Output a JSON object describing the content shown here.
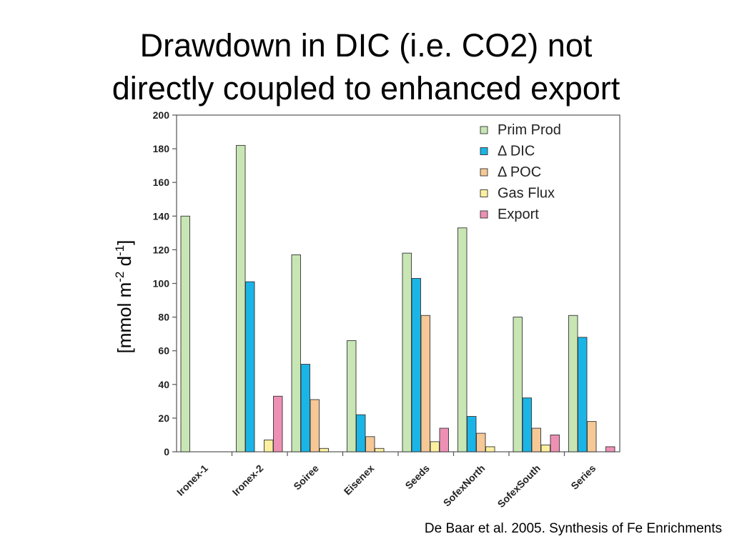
{
  "slide": {
    "title_line1": "Drawdown in DIC (i.e. CO2) not",
    "title_line2": "directly coupled to enhanced export",
    "citation": "De Baar et al. 2005.  Synthesis of Fe Enrichments"
  },
  "chart_data": {
    "type": "bar",
    "title": "",
    "xlabel": "",
    "ylabel": "[mmol m-2 d-1]",
    "ylabel_parts": {
      "pre": "[mmol m",
      "sup1": "-2",
      "mid": " d",
      "sup2": "-1",
      "post": "]"
    },
    "ylim": [
      0,
      200
    ],
    "yticks": [
      0,
      20,
      40,
      60,
      80,
      100,
      120,
      140,
      160,
      180,
      200
    ],
    "grid": false,
    "legend_position": "top-right",
    "categories": [
      "Ironex-1",
      "Ironex-2",
      "Soiree",
      "Eisenex",
      "Seeds",
      "SofexNorth",
      "SofexSouth",
      "Series"
    ],
    "series": [
      {
        "name": "Prim Prod",
        "color": "#c8e6b4",
        "values": [
          140,
          182,
          117,
          66,
          118,
          133,
          80,
          81
        ]
      },
      {
        "name": "Δ DIC",
        "color": "#1ab4e6",
        "values": [
          null,
          101,
          52,
          22,
          103,
          21,
          32,
          68
        ]
      },
      {
        "name": "Δ POC",
        "color": "#f5c896",
        "values": [
          null,
          null,
          31,
          9,
          81,
          11,
          14,
          18
        ]
      },
      {
        "name": "Gas Flux",
        "color": "#fcf0a0",
        "values": [
          null,
          7,
          2,
          2,
          6,
          3,
          4,
          null
        ]
      },
      {
        "name": "Export",
        "color": "#ee90b4",
        "values": [
          null,
          33,
          null,
          null,
          14,
          null,
          10,
          3
        ]
      }
    ]
  }
}
